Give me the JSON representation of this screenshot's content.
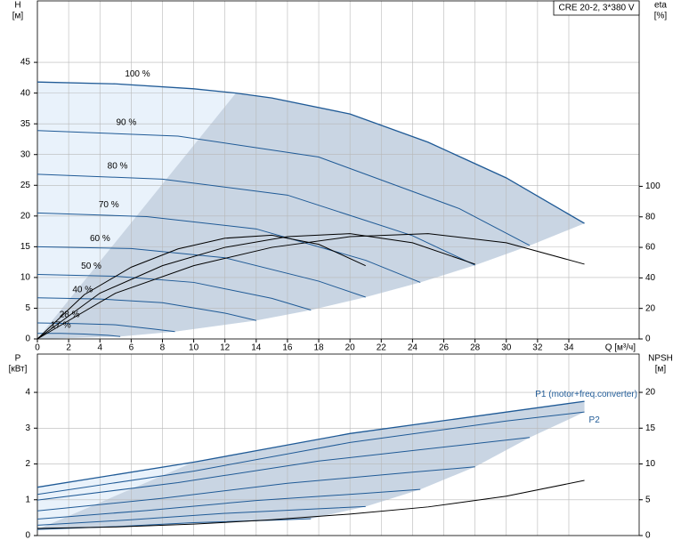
{
  "chart_data": [
    {
      "type": "line",
      "title": "CRE 20-2, 3*380 V",
      "y_label": [
        "H",
        "[м]"
      ],
      "y2_label": [
        "eta",
        "[%]"
      ],
      "x_label": "Q [м³/ч]",
      "xlim": [
        0,
        38.5
      ],
      "xticks": [
        0,
        2,
        4,
        6,
        8,
        10,
        12,
        14,
        16,
        18,
        20,
        22,
        24,
        26,
        28,
        30,
        32,
        34
      ],
      "ylim": [
        0,
        55
      ],
      "yticks": [
        0,
        5,
        10,
        15,
        20,
        25,
        30,
        35,
        40,
        45
      ],
      "y2lim": [
        0,
        221.5
      ],
      "y2ticks": [
        0,
        20,
        40,
        60,
        80,
        100
      ],
      "grid": true,
      "series": [
        {
          "name": "100 %",
          "color": "#1f5a96",
          "x": [
            0,
            5,
            10,
            12.7,
            15,
            20,
            25,
            30,
            35
          ],
          "values": [
            41.8,
            41.5,
            40.7,
            40.0,
            39.2,
            36.6,
            32.0,
            26.2,
            18.8
          ]
        },
        {
          "name": "90 %",
          "color": "#1f5a96",
          "x": [
            0,
            9,
            18,
            27,
            31.5
          ],
          "values": [
            33.9,
            33.0,
            29.6,
            21.2,
            15.2
          ]
        },
        {
          "name": "80 %",
          "color": "#1f5a96",
          "x": [
            0,
            8,
            16,
            24,
            28
          ],
          "values": [
            26.8,
            26.0,
            23.4,
            16.8,
            12.0
          ]
        },
        {
          "name": "70 %",
          "color": "#1f5a96",
          "x": [
            0,
            7,
            14,
            21,
            24.5
          ],
          "values": [
            20.5,
            19.9,
            17.9,
            12.8,
            9.2
          ]
        },
        {
          "name": "60 %",
          "color": "#1f5a96",
          "x": [
            0,
            6,
            12,
            18,
            21
          ],
          "values": [
            15.0,
            14.7,
            13.2,
            9.4,
            6.8
          ]
        },
        {
          "name": "50 %",
          "color": "#1f5a96",
          "x": [
            0,
            5,
            10,
            15,
            17.5
          ],
          "values": [
            10.5,
            10.2,
            9.2,
            6.6,
            4.7
          ]
        },
        {
          "name": "40 %",
          "color": "#1f5a96",
          "x": [
            0,
            4,
            8,
            12,
            14
          ],
          "values": [
            6.7,
            6.5,
            5.9,
            4.2,
            3.0
          ]
        },
        {
          "name": "28 %",
          "color": "#1f5a96",
          "x": [
            0,
            2.5,
            5,
            7.5,
            8.8
          ],
          "values": [
            2.6,
            2.5,
            2.3,
            1.6,
            1.2
          ]
        },
        {
          "name": "17 %",
          "color": "#1f5a96",
          "x": [
            0,
            1.5,
            3,
            4.5,
            5.3
          ],
          "values": [
            0.9,
            0.9,
            0.8,
            0.6,
            0.4
          ]
        },
        {
          "color": "#000000",
          "axis": "y2",
          "x": [
            0,
            5,
            10,
            15,
            20,
            25,
            30,
            35
          ],
          "values": [
            0,
            30,
            48,
            60,
            67,
            69,
            63,
            49
          ]
        },
        {
          "color": "#000000",
          "axis": "y2",
          "x": [
            0,
            4,
            8,
            12,
            16,
            20,
            24,
            28
          ],
          "values": [
            0,
            30,
            48,
            60,
            67,
            69,
            63,
            49
          ]
        },
        {
          "color": "#000000",
          "axis": "y2",
          "x": [
            0,
            3,
            6,
            9,
            12,
            15,
            18,
            21
          ],
          "values": [
            0,
            29,
            47,
            59,
            66,
            68,
            62,
            48
          ]
        }
      ]
    },
    {
      "type": "line",
      "y_label": [
        "P",
        "[кВт]"
      ],
      "y2_label": [
        "NPSH",
        "[м]"
      ],
      "xlim": [
        0,
        38.5
      ],
      "ylim": [
        0,
        5.07
      ],
      "yticks": [
        0,
        1,
        2,
        3,
        4
      ],
      "y2lim": [
        0,
        25.35
      ],
      "y2ticks": [
        0,
        5,
        10,
        15,
        20
      ],
      "grid": true,
      "series": [
        {
          "name": "P1 (motor+freq.converter)",
          "color": "#1f5a96",
          "x": [
            0,
            10,
            20,
            30,
            35
          ],
          "values": [
            1.35,
            2.05,
            2.85,
            3.45,
            3.75
          ]
        },
        {
          "name": "P2",
          "color": "#1f5a96",
          "x": [
            0,
            10,
            20,
            30,
            35
          ],
          "values": [
            1.15,
            1.8,
            2.6,
            3.2,
            3.45
          ]
        },
        {
          "color": "#1f5a96",
          "x": [
            0,
            9,
            18,
            27,
            31.5
          ],
          "values": [
            0.99,
            1.48,
            2.08,
            2.52,
            2.74
          ]
        },
        {
          "color": "#1f5a96",
          "x": [
            0,
            8,
            16,
            24,
            28
          ],
          "values": [
            0.69,
            1.04,
            1.46,
            1.77,
            1.92
          ]
        },
        {
          "color": "#1f5a96",
          "x": [
            0,
            7,
            14,
            21,
            24.5
          ],
          "values": [
            0.46,
            0.7,
            0.98,
            1.18,
            1.29
          ]
        },
        {
          "color": "#1f5a96",
          "x": [
            0,
            6,
            12,
            18,
            21
          ],
          "values": [
            0.29,
            0.44,
            0.62,
            0.75,
            0.81
          ]
        },
        {
          "color": "#1f5a96",
          "x": [
            0,
            5,
            10,
            15,
            17.5
          ],
          "values": [
            0.17,
            0.25,
            0.36,
            0.43,
            0.47
          ]
        },
        {
          "color": "#000000",
          "axis": "y2",
          "x": [
            0,
            5,
            10,
            15,
            20,
            25,
            30,
            35
          ],
          "values": [
            1.0,
            1.2,
            1.6,
            2.2,
            3.0,
            4.0,
            5.5,
            7.7
          ]
        }
      ]
    }
  ]
}
